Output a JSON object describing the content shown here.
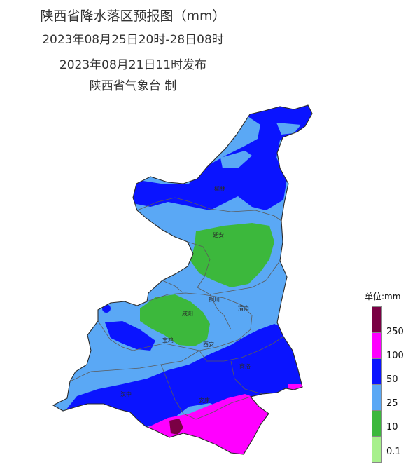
{
  "header": {
    "title": "陕西省降水落区预报图（mm）",
    "period": "2023年08月25日20时-28日08时",
    "issued": "2023年08月21日11时发布",
    "agency": "陕西省气象台 制"
  },
  "cities": [
    "榆林",
    "延安",
    "铜川",
    "渭南",
    "咸阳",
    "宝鸡",
    "西安",
    "汉中",
    "商洛",
    "安康"
  ],
  "legend": {
    "title": "单位:mm",
    "labels": [
      "250",
      "100",
      "50",
      "25",
      "10",
      "0.1"
    ],
    "colors": {
      "above_250": "#7a0044",
      "r100_250": "#ff00ff",
      "r50_100": "#0a14ff",
      "r25_50": "#5aa8f5",
      "r10_25": "#3cb83c",
      "r0_10": "#a7f08c"
    }
  }
}
